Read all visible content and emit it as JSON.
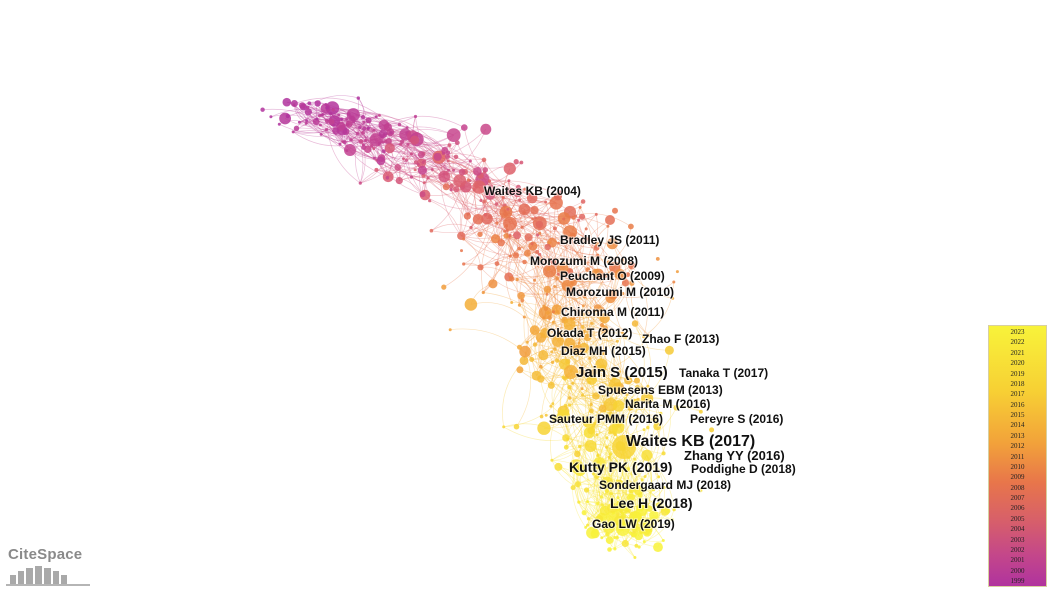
{
  "labels": [
    {
      "text": "Waites KB (2004)",
      "size": 12
    },
    {
      "text": "Bradley JS (2011)",
      "size": 12
    },
    {
      "text": "Morozumi M (2008)",
      "size": 12
    },
    {
      "text": "Peuchant O (2009)",
      "size": 12
    },
    {
      "text": "Morozumi M (2010)",
      "size": 12
    },
    {
      "text": "Chironna M (2011)",
      "size": 12
    },
    {
      "text": "Okada T (2012)",
      "size": 12
    },
    {
      "text": "Zhao F (2013)",
      "size": 12
    },
    {
      "text": "Diaz MH (2015)",
      "size": 12
    },
    {
      "text": "Jain S (2015)",
      "size": 15
    },
    {
      "text": "Tanaka T (2017)",
      "size": 12
    },
    {
      "text": "Spuesens EBM (2013)",
      "size": 12
    },
    {
      "text": "Narita M (2016)",
      "size": 12
    },
    {
      "text": "Sauteur PMM (2016)",
      "size": 12
    },
    {
      "text": "Pereyre S (2016)",
      "size": 12
    },
    {
      "text": "Waites KB (2017)",
      "size": 16
    },
    {
      "text": "Zhang YY (2016)",
      "size": 13
    },
    {
      "text": "Kutty PK (2019)",
      "size": 14
    },
    {
      "text": "Poddighe D (2018)",
      "size": 12
    },
    {
      "text": "Sondergaard MJ (2018)",
      "size": 12
    },
    {
      "text": "Lee H (2018)",
      "size": 14
    },
    {
      "text": "Gao LW (2019)",
      "size": 12
    }
  ],
  "legend": {
    "years": [
      "2023",
      "2022",
      "2021",
      "2020",
      "2019",
      "2018",
      "2017",
      "2016",
      "2015",
      "2014",
      "2013",
      "2012",
      "2011",
      "2010",
      "2009",
      "2008",
      "2007",
      "2006",
      "2005",
      "2004",
      "2003",
      "2002",
      "2001",
      "2000",
      "1999"
    ]
  },
  "logo": {
    "text": "CiteSpace"
  }
}
